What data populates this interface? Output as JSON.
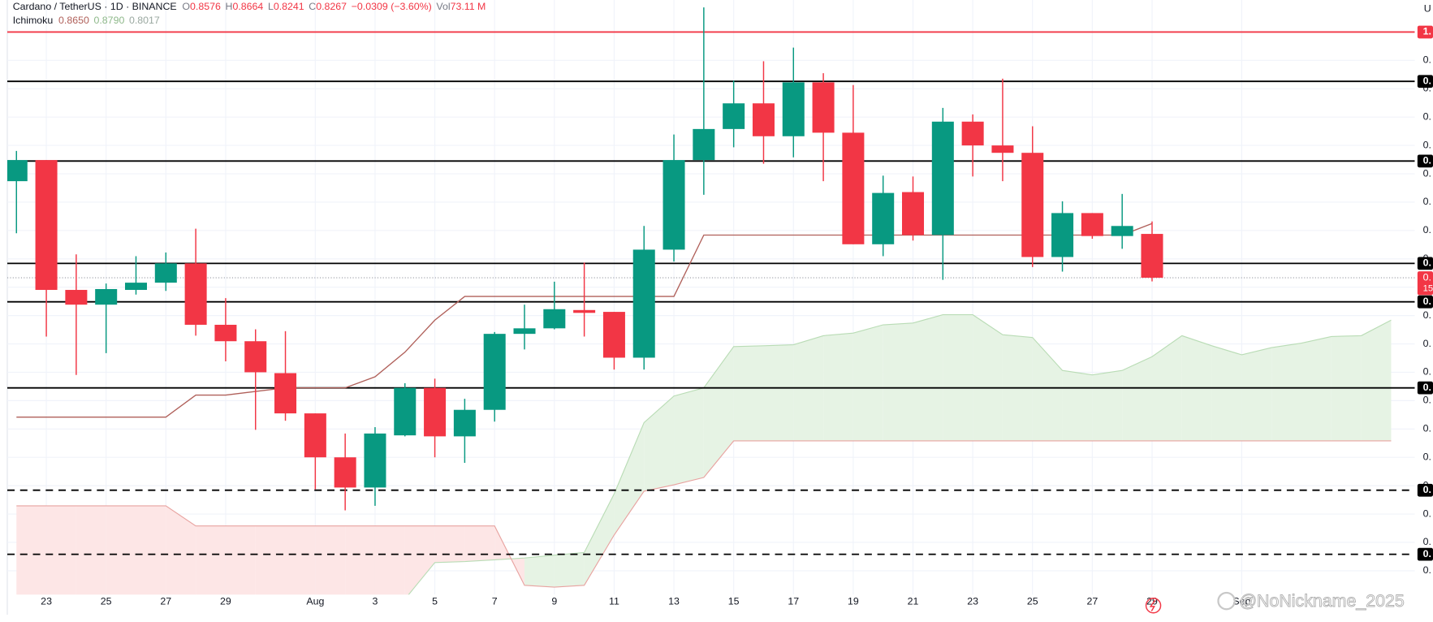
{
  "header": {
    "symbol": "Cardano / TetherUS · 1D · BINANCE",
    "o": "O",
    "h": "H",
    "l": "L",
    "c": "C",
    "change": "−0.0309 (−3.60%)",
    "vol_label": "Vol",
    "vol": "73.11 M",
    "indicator": "Ichimoku",
    "ind_values": [
      "0.8650",
      "0.8790",
      "0.8017"
    ],
    "currency": "U",
    "watermark": "@NoNickname_2025"
  },
  "chart_data": {
    "type": "candlestick",
    "categories": [
      null,
      "23",
      null,
      "25",
      null,
      "27",
      null,
      "29",
      null,
      null,
      "Aug",
      null,
      "3",
      null,
      "5",
      null,
      "7",
      null,
      "9",
      null,
      "11",
      null,
      "13",
      null,
      "15",
      null,
      "17",
      null,
      "19",
      null,
      "21",
      null,
      "23",
      null,
      "25",
      null,
      "27",
      null,
      "29",
      null,
      null,
      "Sep",
      null,
      null,
      null,
      null,
      null
    ],
    "open": [
      0.8948,
      0.9097,
      0.8181,
      0.8077,
      0.8181,
      0.8232,
      0.8368,
      0.7935,
      0.7819,
      0.7594,
      0.731,
      0.7,
      0.6787,
      0.7155,
      0.749,
      0.7148,
      0.7335,
      0.7871,
      0.791,
      0.8039,
      0.8026,
      0.7703,
      0.8465,
      0.9097,
      0.9316,
      0.9497,
      0.9265,
      0.9645,
      0.929,
      0.8503,
      0.8871,
      0.8568,
      0.9368,
      0.92,
      0.9148,
      0.8413,
      0.8723,
      0.8561,
      0.8576,
      null,
      null,
      null,
      null,
      null,
      null,
      null,
      null
    ],
    "high": [
      0.9161,
      0.9097,
      0.8432,
      0.8226,
      0.8419,
      0.8445,
      0.8613,
      0.8123,
      0.7903,
      0.789,
      0.731,
      0.7168,
      0.7213,
      0.7523,
      0.7555,
      0.7413,
      0.7884,
      0.8077,
      0.8239,
      0.8374,
      0.8026,
      0.8632,
      0.9277,
      1.0174,
      0.9658,
      0.9794,
      0.989,
      0.971,
      0.9626,
      0.8987,
      0.8981,
      0.9465,
      0.9419,
      0.9671,
      0.9335,
      0.8806,
      0.8723,
      0.8858,
      0.8664,
      null,
      null,
      null,
      null,
      null,
      null,
      null,
      null
    ],
    "low": [
      0.8581,
      0.7852,
      0.7581,
      0.7735,
      0.8148,
      0.8174,
      0.7858,
      0.7677,
      0.7194,
      0.7258,
      0.6774,
      0.6626,
      0.6658,
      0.7148,
      0.7,
      0.6961,
      0.7252,
      0.7761,
      0.7903,
      0.7852,
      0.7619,
      0.7619,
      0.8381,
      0.8852,
      0.9187,
      0.9071,
      0.9116,
      0.8948,
      0.8503,
      0.8419,
      0.8529,
      0.8252,
      0.8981,
      0.8948,
      0.8342,
      0.831,
      0.8542,
      0.8471,
      0.8241,
      null,
      null,
      null,
      null,
      null,
      null,
      null,
      null
    ],
    "close": [
      0.9097,
      0.8181,
      0.8077,
      0.8187,
      0.8232,
      0.8368,
      0.7935,
      0.7819,
      0.76,
      0.731,
      0.7,
      0.6787,
      0.7168,
      0.749,
      0.7148,
      0.7335,
      0.7871,
      0.791,
      0.8045,
      0.8019,
      0.7703,
      0.8465,
      0.9097,
      0.9316,
      0.9497,
      0.9265,
      0.9645,
      0.929,
      0.8503,
      0.8865,
      0.8568,
      0.9368,
      0.92,
      0.9148,
      0.8413,
      0.8723,
      0.8561,
      0.8632,
      0.8267,
      null,
      null,
      null,
      null,
      null,
      null,
      null,
      null
    ],
    "up_color": "#089981",
    "down_color": "#f23645",
    "kijun": {
      "color": "#b0605a",
      "values": [
        0.7284,
        0.7284,
        0.7284,
        0.7284,
        0.7284,
        0.7284,
        0.7439,
        0.7439,
        0.7465,
        0.749,
        0.749,
        0.749,
        0.7568,
        0.7742,
        0.7968,
        0.8135,
        0.8135,
        0.8135,
        0.8135,
        0.8135,
        0.8135,
        0.8135,
        0.8135,
        0.8568,
        0.8568,
        0.8568,
        0.8568,
        0.8568,
        0.8568,
        0.8568,
        0.8568,
        0.8568,
        0.8568,
        0.8568,
        0.8568,
        0.8568,
        0.8568,
        0.8568,
        0.865,
        null,
        null,
        null,
        null,
        null,
        null,
        null,
        null
      ]
    },
    "cloud": {
      "up_color": "#e6f3e4",
      "down_color": "#fde6e6",
      "a_color": "#b9dcb5",
      "b_color": "#e8a3a0",
      "span_a": [
        0.6,
        0.6,
        0.6,
        0.6,
        0.6,
        0.6,
        0.6,
        0.6,
        0.6,
        0.6,
        0.6,
        0.6,
        0.6,
        0.6,
        0.6258,
        0.6265,
        0.6277,
        0.629,
        0.631,
        0.6329,
        0.6742,
        0.7245,
        0.7432,
        0.749,
        0.7781,
        0.7787,
        0.7794,
        0.7858,
        0.7877,
        0.7935,
        0.7948,
        0.8006,
        0.8006,
        0.7865,
        0.7845,
        0.7613,
        0.7581,
        0.7613,
        0.771,
        0.7858,
        0.7787,
        0.7723,
        0.7774,
        0.7806,
        0.7852,
        0.7858,
        0.7968
      ],
      "span_b": [
        0.6658,
        0.6658,
        0.6658,
        0.6658,
        0.6658,
        0.6658,
        0.6516,
        0.6516,
        0.6516,
        0.6516,
        0.6516,
        0.6516,
        0.6516,
        0.6516,
        0.6516,
        0.6516,
        0.6516,
        0.6097,
        0.6084,
        0.6097,
        0.6452,
        0.6761,
        0.6806,
        0.6858,
        0.7116,
        0.7116,
        0.7116,
        0.7116,
        0.7116,
        0.7116,
        0.7116,
        0.7116,
        0.7116,
        0.7116,
        0.7116,
        0.7116,
        0.7116,
        0.7116,
        0.7116,
        0.7116,
        0.7116,
        0.7116,
        0.7116,
        0.7116,
        0.7116,
        0.7116,
        0.7116
      ]
    },
    "levels": [
      {
        "value": 1.0,
        "label": "1.",
        "color": "#f23645",
        "style": "solid"
      },
      {
        "value": 0.9652,
        "label": "0.",
        "color": "#000000",
        "style": "solid"
      },
      {
        "value": 0.909,
        "label": "0.",
        "color": "#000000",
        "style": "solid"
      },
      {
        "value": 0.8368,
        "label": "0.",
        "color": "#000000",
        "style": "solid"
      },
      {
        "value": 0.8097,
        "label": "0.",
        "color": "#000000",
        "style": "solid"
      },
      {
        "value": 0.749,
        "label": "0.",
        "color": "#000000",
        "style": "solid"
      },
      {
        "value": 0.6768,
        "label": "0.",
        "color": "#000000",
        "style": "dashed"
      },
      {
        "value": 0.6316,
        "label": "0.",
        "color": "#000000",
        "style": "dashed"
      }
    ],
    "price_line": {
      "label": "0.",
      "countdown": "15"
    },
    "ylim": [
      0.6032,
      1.0226
    ],
    "yticks": [
      {
        "value": 0.98,
        "label": "0."
      },
      {
        "value": 0.96,
        "label": "0."
      },
      {
        "value": 0.94,
        "label": "0."
      },
      {
        "value": 0.92,
        "label": "0."
      },
      {
        "value": 0.9,
        "label": "0."
      },
      {
        "value": 0.88,
        "label": "0."
      },
      {
        "value": 0.86,
        "label": "0."
      },
      {
        "value": 0.84,
        "label": "0."
      },
      {
        "value": 0.82,
        "label": "0."
      },
      {
        "value": 0.8,
        "label": "0."
      },
      {
        "value": 0.78,
        "label": "0."
      },
      {
        "value": 0.76,
        "label": "0."
      },
      {
        "value": 0.74,
        "label": "0."
      },
      {
        "value": 0.72,
        "label": "0."
      },
      {
        "value": 0.7,
        "label": "0."
      },
      {
        "value": 0.68,
        "label": "0."
      },
      {
        "value": 0.66,
        "label": "0."
      },
      {
        "value": 0.64,
        "label": "0."
      },
      {
        "value": 0.62,
        "label": "0."
      }
    ],
    "grid": true
  }
}
